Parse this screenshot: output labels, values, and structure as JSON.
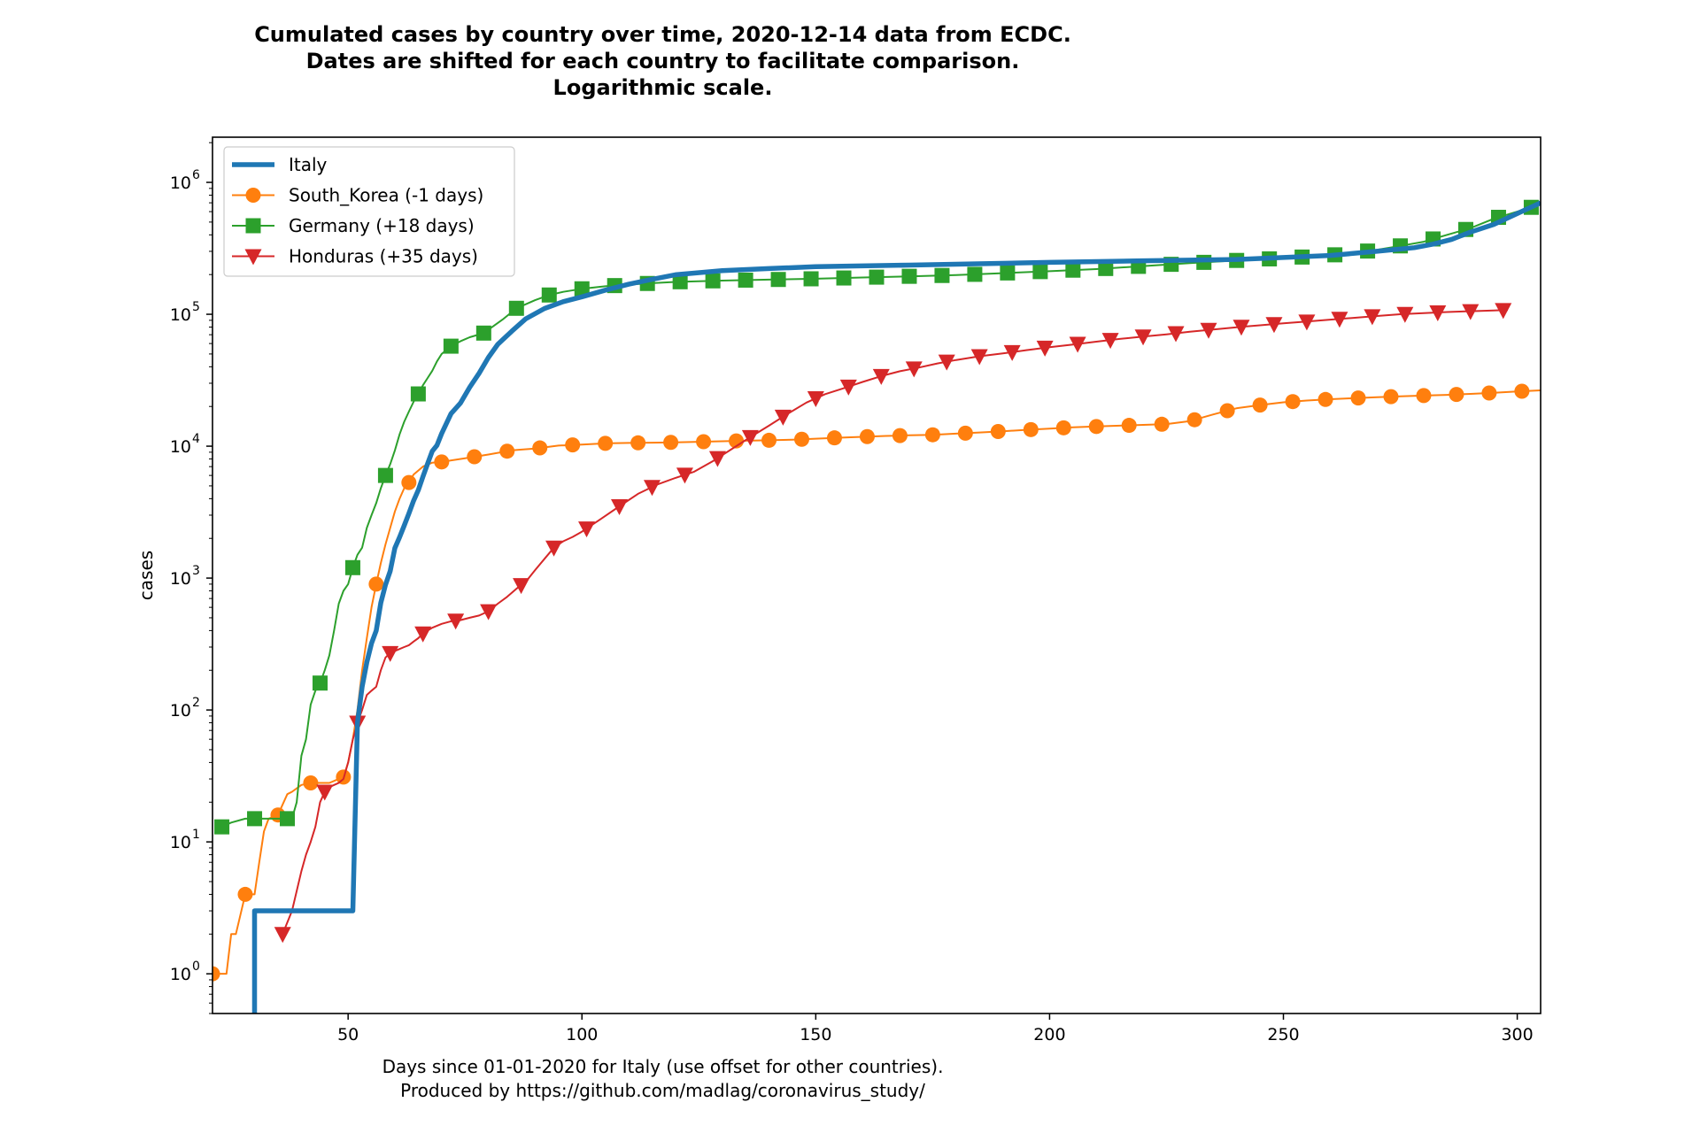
{
  "chart_data": {
    "type": "line",
    "title_lines": [
      "Cumulated cases by country over time, 2020-12-14 data from ECDC.",
      "Dates are shifted for each country to facilitate comparison.",
      "Logarithmic scale."
    ],
    "xlabel_lines": [
      "Days since 01-01-2020 for Italy (use offset for other countries).",
      "Produced by https://github.com/madlag/coronavirus_study/"
    ],
    "ylabel": "cases",
    "x_ticks": [
      50,
      100,
      150,
      200,
      250,
      300
    ],
    "y_ticks": [
      {
        "value": 1,
        "label": "10",
        "exp": "0"
      },
      {
        "value": 10,
        "label": "10",
        "exp": "1"
      },
      {
        "value": 100,
        "label": "10",
        "exp": "2"
      },
      {
        "value": 1000,
        "label": "10",
        "exp": "3"
      },
      {
        "value": 10000,
        "label": "10",
        "exp": "4"
      },
      {
        "value": 100000,
        "label": "10",
        "exp": "5"
      },
      {
        "value": 1000000,
        "label": "10",
        "exp": "6"
      }
    ],
    "xlim": [
      21,
      305
    ],
    "ylim": [
      0.5,
      2200000
    ],
    "yscale": "log",
    "grid": false,
    "legend_position": "upper left",
    "series": [
      {
        "name": "Italy",
        "color": "#1f77b4",
        "marker": "none",
        "linewidth": 5.5,
        "x": [
          30,
          30,
          51,
          52,
          53,
          54,
          55,
          56,
          57,
          58,
          59,
          60,
          61,
          62,
          63,
          64,
          65,
          66,
          67,
          68,
          69,
          70,
          72,
          74,
          76,
          78,
          80,
          82,
          85,
          88,
          92,
          96,
          100,
          105,
          110,
          115,
          120,
          130,
          140,
          150,
          170,
          200,
          220,
          240,
          260,
          270,
          278,
          282,
          286,
          290,
          295,
          300,
          305
        ],
        "y": [
          0.5,
          3,
          3,
          80,
          150,
          230,
          320,
          400,
          650,
          890,
          1130,
          1690,
          2040,
          2500,
          3090,
          3860,
          4640,
          5880,
          7380,
          9170,
          10150,
          12460,
          17660,
          21160,
          27980,
          35710,
          47020,
          59140,
          74390,
          92470,
          110570,
          124630,
          135590,
          152270,
          168940,
          183960,
          199410,
          214460,
          222100,
          229330,
          235760,
          247540,
          254640,
          260300,
          279000,
          300000,
          320000,
          340000,
          370000,
          420000,
          480000,
          580000,
          700000
        ]
      },
      {
        "name": "South_Korea (-1 days)",
        "color": "#ff7f0e",
        "marker": "circle",
        "linewidth": 2,
        "x": [
          21,
          24,
          25,
          26,
          28,
          30,
          31,
          32,
          33,
          35,
          37,
          38,
          40,
          42,
          44,
          46,
          48,
          49,
          50,
          51,
          52,
          53,
          54,
          55,
          56,
          57,
          58,
          59,
          60,
          61,
          62,
          63,
          64,
          66,
          68,
          70,
          75,
          80,
          85,
          90,
          95,
          100,
          105,
          110,
          115,
          120,
          125,
          130,
          135,
          140,
          145,
          150,
          155,
          160,
          165,
          170,
          175,
          180,
          185,
          190,
          195,
          200,
          205,
          210,
          215,
          220,
          225,
          230,
          235,
          240,
          245,
          250,
          255,
          260,
          265,
          270,
          275,
          280,
          285,
          290,
          295,
          300,
          305
        ],
        "y": [
          1,
          1,
          2,
          2,
          4,
          4,
          7,
          12,
          15,
          16,
          23,
          24,
          27,
          28,
          28,
          28,
          30,
          31,
          40,
          60,
          100,
          200,
          350,
          600,
          900,
          1300,
          1800,
          2400,
          3200,
          4000,
          4800,
          5300,
          6100,
          7000,
          7500,
          7600,
          8100,
          8650,
          9300,
          9600,
          10100,
          10300,
          10500,
          10580,
          10630,
          10700,
          10790,
          10900,
          11000,
          11080,
          11200,
          11400,
          11600,
          11780,
          11950,
          12080,
          12200,
          12440,
          12700,
          12980,
          13300,
          13600,
          13900,
          14100,
          14300,
          14500,
          14700,
          15500,
          17400,
          19400,
          20500,
          21500,
          22200,
          22700,
          23100,
          23500,
          23900,
          24200,
          24500,
          24900,
          25400,
          26000,
          26500
        ],
        "marker_x": [
          21,
          28,
          35,
          42,
          49,
          56,
          63,
          70,
          77,
          84,
          91,
          98,
          105,
          112,
          119,
          126,
          133,
          140,
          147,
          154,
          161,
          168,
          175,
          182,
          189,
          196,
          203,
          210,
          217,
          224,
          231,
          238,
          245,
          252,
          259,
          266,
          273,
          280,
          287,
          294,
          301
        ]
      },
      {
        "name": "Germany (+18 days)",
        "color": "#2ca02c",
        "marker": "square",
        "linewidth": 2,
        "x": [
          23,
          25,
          28,
          30,
          32,
          35,
          37,
          38,
          39,
          40,
          41,
          42,
          43,
          44,
          45,
          46,
          47,
          48,
          49,
          50,
          51,
          52,
          53,
          54,
          55,
          56,
          57,
          58,
          59,
          60,
          61,
          62,
          63,
          64,
          65,
          66,
          67,
          68,
          69,
          70,
          72,
          74,
          76,
          79,
          83,
          86,
          90,
          93,
          96,
          100,
          105,
          110,
          115,
          120,
          130,
          140,
          150,
          160,
          170,
          180,
          190,
          200,
          210,
          220,
          230,
          240,
          250,
          260,
          265,
          270,
          275,
          280,
          285,
          290,
          295,
          300,
          305
        ],
        "y": [
          13,
          14,
          15,
          15,
          15,
          15,
          15,
          15,
          20,
          45,
          60,
          110,
          140,
          160,
          200,
          260,
          400,
          640,
          800,
          900,
          1200,
          1500,
          1700,
          2400,
          3000,
          3700,
          4800,
          6000,
          7300,
          9300,
          12300,
          15300,
          18300,
          21700,
          24900,
          29000,
          32900,
          37300,
          43900,
          50000,
          57300,
          62400,
          67000,
          72000,
          91000,
          111000,
          128000,
          140000,
          148000,
          156000,
          163000,
          168000,
          172000,
          176000,
          180000,
          183000,
          186000,
          190000,
          194000,
          198000,
          205000,
          212000,
          220000,
          232000,
          244000,
          256000,
          266000,
          280000,
          292000,
          308000,
          330000,
          355000,
          400000,
          450000,
          530000,
          600000,
          680000
        ],
        "marker_x": [
          23,
          30,
          37,
          44,
          51,
          58,
          65,
          72,
          79,
          86,
          93,
          100,
          107,
          114,
          121,
          128,
          135,
          142,
          149,
          156,
          163,
          170,
          177,
          184,
          191,
          198,
          205,
          212,
          219,
          226,
          233,
          240,
          247,
          254,
          261,
          268,
          275,
          282,
          289,
          296,
          303
        ]
      },
      {
        "name": "Honduras (+35 days)",
        "color": "#d62728",
        "marker": "triangle_down",
        "linewidth": 2,
        "x": [
          36,
          38,
          40,
          41,
          42,
          43,
          44,
          45,
          46,
          47,
          48,
          49,
          50,
          51,
          52,
          53,
          54,
          55,
          56,
          57,
          58,
          59,
          60,
          61,
          62,
          63,
          64,
          65,
          66,
          68,
          70,
          72,
          74,
          76,
          78,
          80,
          82,
          84,
          86,
          88,
          90,
          92,
          94,
          96,
          98,
          100,
          104,
          108,
          112,
          116,
          120,
          124,
          128,
          132,
          136,
          140,
          144,
          148,
          152,
          156,
          160,
          164,
          168,
          172,
          176,
          180,
          185,
          190,
          195,
          200,
          205,
          210,
          215,
          220,
          225,
          230,
          235,
          240,
          245,
          250,
          255,
          260,
          265,
          270,
          275,
          280,
          285,
          290,
          295,
          298
        ],
        "y": [
          2,
          3,
          6,
          8,
          10,
          13,
          20,
          24,
          26,
          27,
          28,
          30,
          40,
          60,
          80,
          100,
          130,
          140,
          150,
          200,
          250,
          270,
          280,
          290,
          300,
          310,
          330,
          350,
          380,
          420,
          450,
          470,
          480,
          500,
          520,
          560,
          640,
          720,
          830,
          940,
          1150,
          1400,
          1700,
          1900,
          2050,
          2250,
          2800,
          3500,
          4350,
          5100,
          5750,
          6400,
          7700,
          9500,
          11700,
          14300,
          17600,
          21400,
          24800,
          27500,
          30700,
          34000,
          37000,
          39400,
          42400,
          45000,
          48000,
          50500,
          53400,
          56300,
          59000,
          62000,
          65000,
          67800,
          70500,
          73700,
          76700,
          79700,
          82500,
          85300,
          88000,
          91000,
          94000,
          97000,
          100000,
          102000,
          104000,
          105500,
          106700,
          108000
        ],
        "marker_x": [
          36,
          45,
          52,
          59,
          66,
          73,
          80,
          87,
          94,
          101,
          108,
          115,
          122,
          129,
          136,
          143,
          150,
          157,
          164,
          171,
          178,
          185,
          192,
          199,
          206,
          213,
          220,
          227,
          234,
          241,
          248,
          255,
          262,
          269,
          276,
          283,
          290,
          297
        ]
      }
    ]
  }
}
